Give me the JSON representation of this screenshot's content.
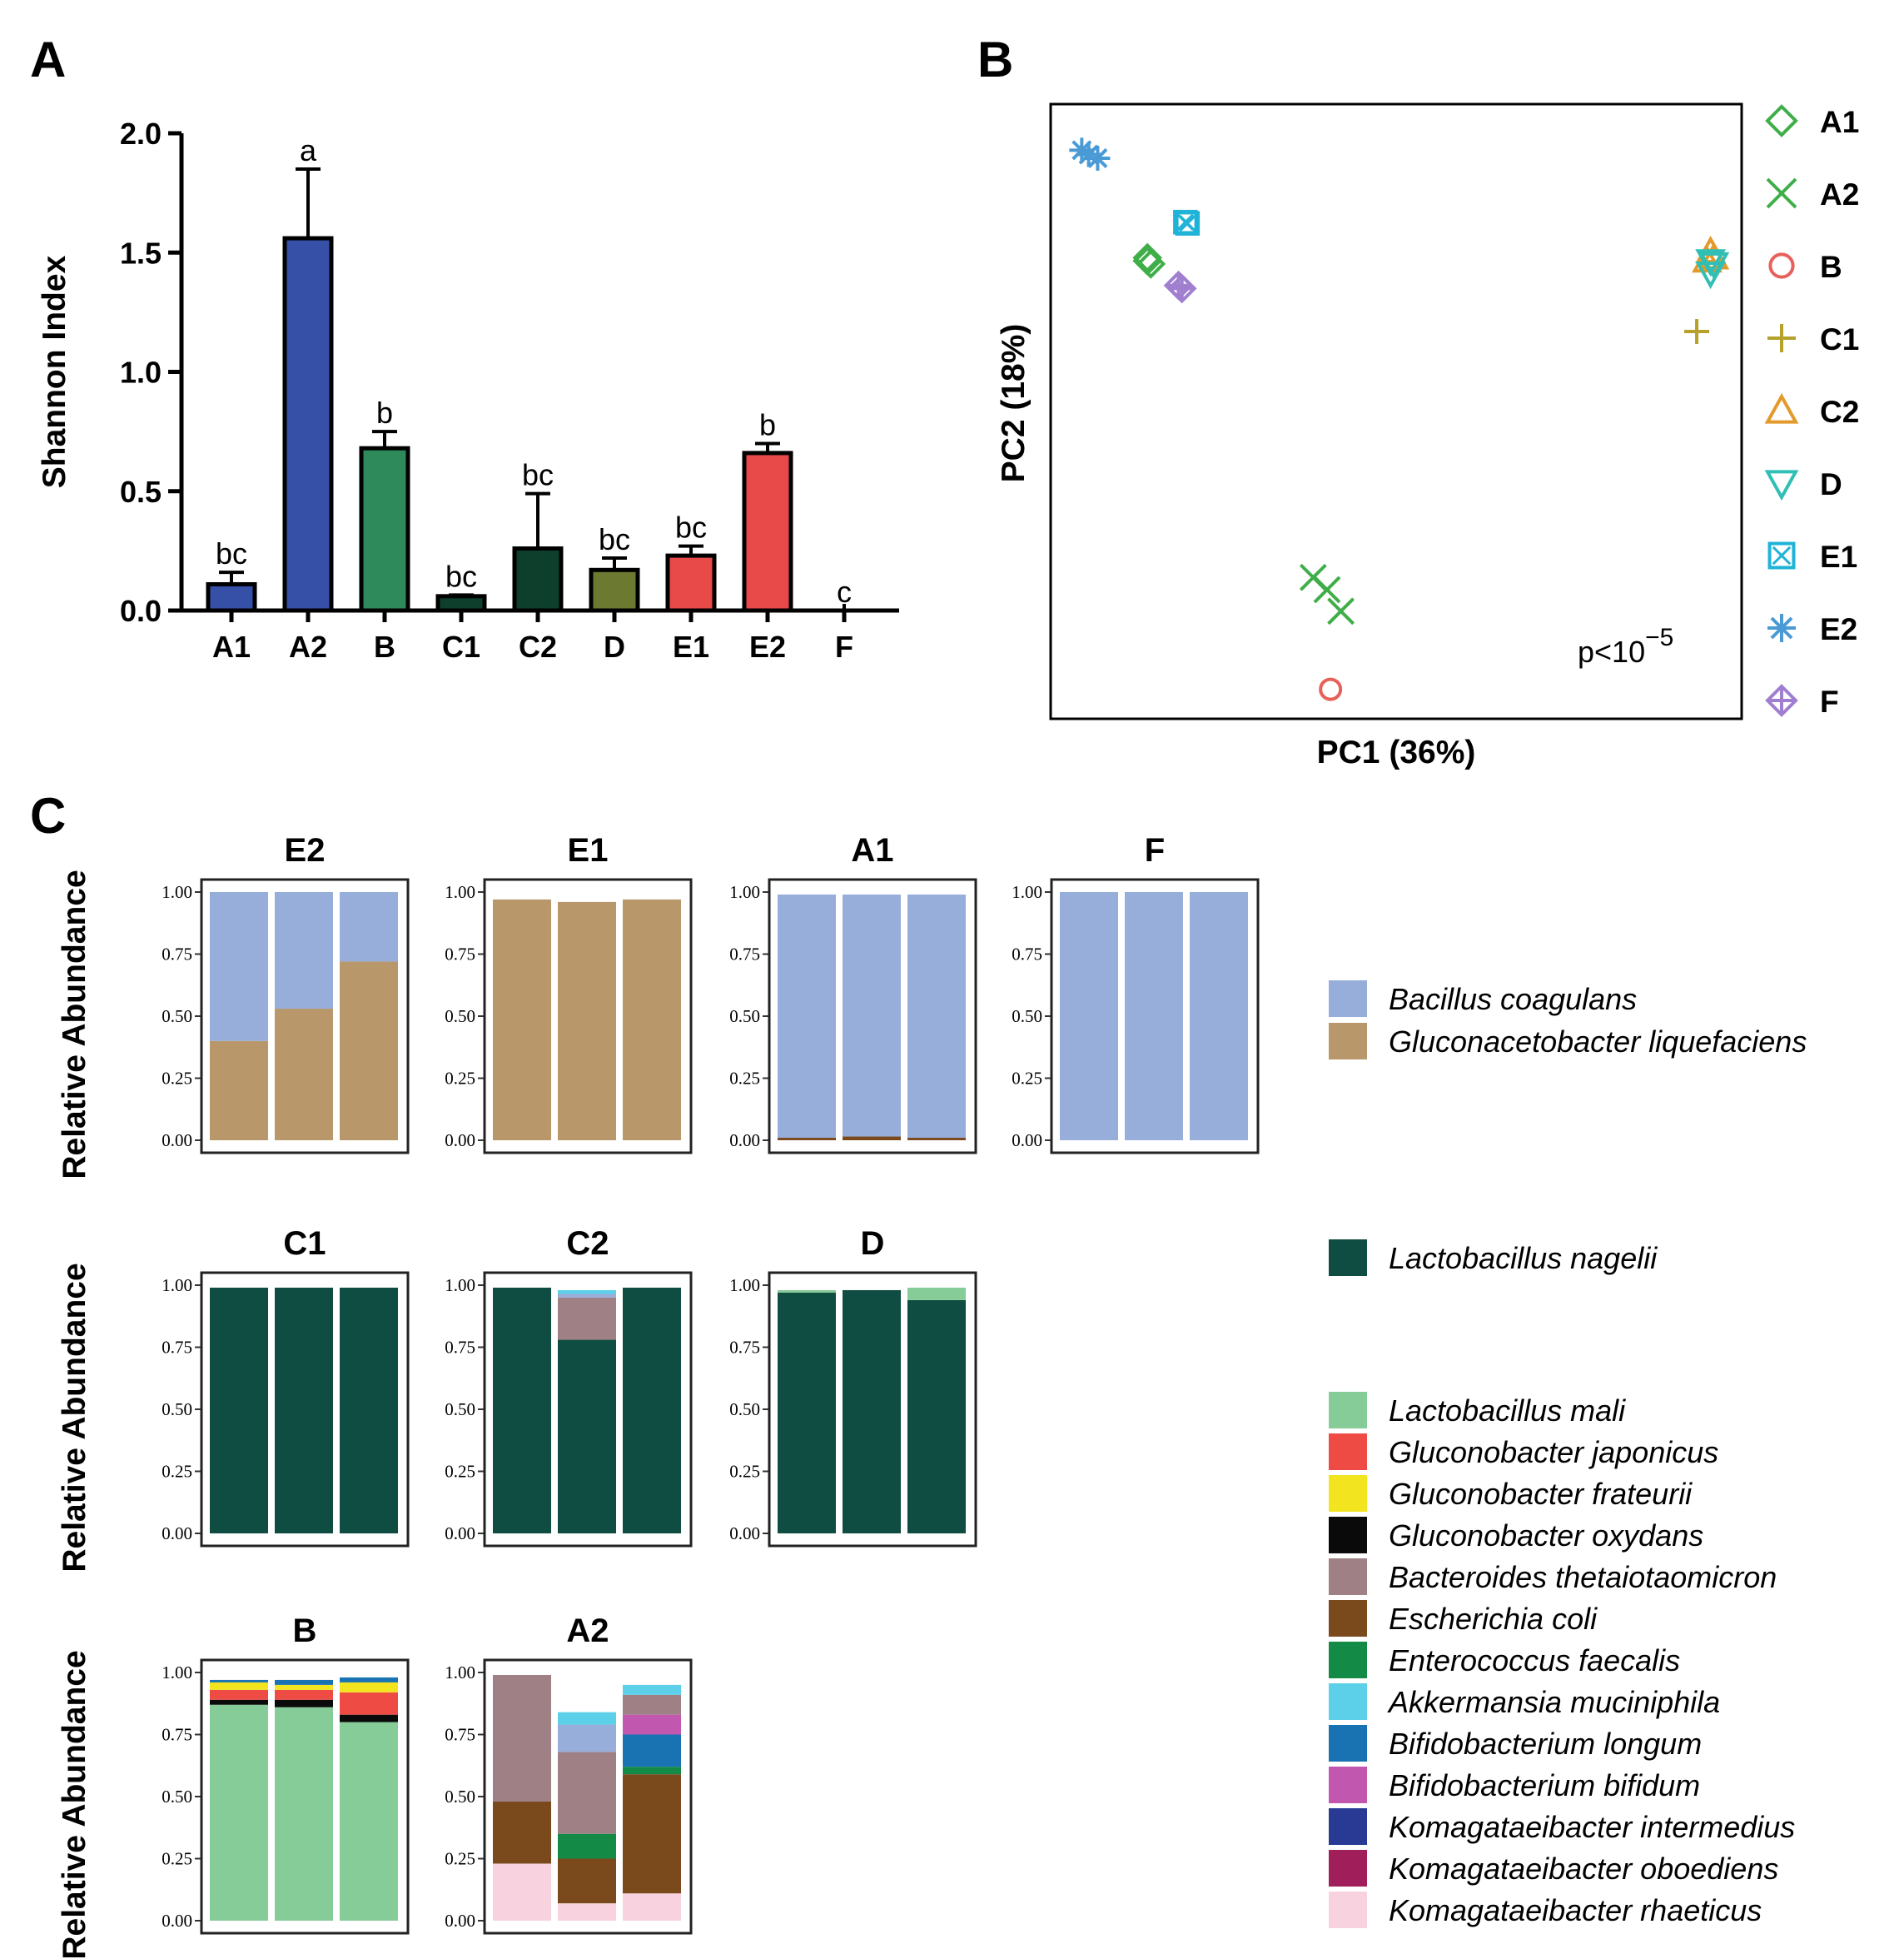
{
  "panels": {
    "a": "A",
    "b": "B",
    "c": "C"
  },
  "chart_data": [
    {
      "id": "A",
      "type": "bar",
      "ylabel": "Shannon Index",
      "xlabel": "",
      "ylim": [
        0,
        2.0
      ],
      "yticks": [
        "0.0",
        "0.5",
        "1.0",
        "1.5",
        "2.0"
      ],
      "categories": [
        "A1",
        "A2",
        "B",
        "C1",
        "C2",
        "D",
        "E1",
        "E2",
        "F"
      ],
      "values": [
        0.11,
        1.56,
        0.68,
        0.06,
        0.26,
        0.17,
        0.23,
        0.66,
        0.0
      ],
      "errors": [
        0.05,
        0.29,
        0.07,
        0.005,
        0.23,
        0.05,
        0.04,
        0.04,
        0.0
      ],
      "letters": [
        "bc",
        "a",
        "b",
        "bc",
        "bc",
        "bc",
        "bc",
        "b",
        "c"
      ],
      "colors": [
        "#3650a8",
        "#3650a8",
        "#2e8a5a",
        "#0e3f2c",
        "#0e3f2c",
        "#6b7a30",
        "#e84a4a",
        "#e84a4a",
        "#3650a8"
      ]
    },
    {
      "id": "B",
      "type": "scatter",
      "xlabel": "PC1 (36%)",
      "ylabel": "PC2 (18%)",
      "xlim": [
        0,
        1
      ],
      "ylim": [
        0,
        1
      ],
      "annotation": {
        "base": "p<10",
        "exponent": "−5"
      },
      "series": [
        {
          "name": "A1",
          "color": "#3fae49",
          "marker": "diamond",
          "points": [
            [
              0.14,
              0.75
            ],
            [
              0.145,
              0.74
            ],
            [
              0.14,
              0.745
            ]
          ]
        },
        {
          "name": "A2",
          "color": "#3fae49",
          "marker": "x",
          "points": [
            [
              0.38,
              0.23
            ],
            [
              0.4,
              0.21
            ],
            [
              0.42,
              0.175
            ]
          ]
        },
        {
          "name": "B",
          "color": "#e8605a",
          "marker": "circle",
          "points": [
            [
              0.405,
              0.048
            ]
          ]
        },
        {
          "name": "C1",
          "color": "#b5a12c",
          "marker": "plus",
          "points": [
            [
              0.935,
              0.63
            ]
          ]
        },
        {
          "name": "C2",
          "color": "#e39a2a",
          "marker": "triangle-up",
          "points": [
            [
              0.955,
              0.76
            ],
            [
              0.96,
              0.75
            ],
            [
              0.95,
              0.745
            ]
          ]
        },
        {
          "name": "D",
          "color": "#2fbfb5",
          "marker": "triangle-down",
          "points": [
            [
              0.955,
              0.745
            ],
            [
              0.96,
              0.74
            ],
            [
              0.955,
              0.725
            ]
          ]
        },
        {
          "name": "E1",
          "color": "#1fb3d8",
          "marker": "box-x",
          "points": [
            [
              0.195,
              0.808
            ],
            [
              0.198,
              0.806
            ]
          ]
        },
        {
          "name": "E2",
          "color": "#4a9ad6",
          "marker": "asterisk",
          "points": [
            [
              0.045,
              0.925
            ],
            [
              0.055,
              0.918
            ],
            [
              0.068,
              0.912
            ]
          ]
        },
        {
          "name": "F",
          "color": "#a07fd0",
          "marker": "diamond-plus",
          "points": [
            [
              0.185,
              0.705
            ],
            [
              0.19,
              0.7
            ]
          ]
        }
      ]
    },
    {
      "id": "C",
      "type": "bar",
      "stacked": true,
      "ylabel": "Relative Abundance",
      "yticks": [
        "0.00",
        "0.25",
        "0.50",
        "0.75",
        "1.00"
      ],
      "legend": [
        {
          "name": "Bacillus coagulans",
          "color": "#97aedb"
        },
        {
          "name": "Gluconacetobacter liquefaciens",
          "color": "#b8976a"
        },
        {
          "name": "Lactobacillus nagelii",
          "color": "#0f4c41"
        },
        {
          "name": "Lactobacillus mali",
          "color": "#86cc98"
        },
        {
          "name": "Gluconobacter japonicus",
          "color": "#ee4b45"
        },
        {
          "name": "Gluconobacter frateurii",
          "color": "#f2e41f"
        },
        {
          "name": "Gluconobacter oxydans",
          "color": "#0a0a0a"
        },
        {
          "name": "Bacteroides thetaiotaomicron",
          "color": "#9e8085"
        },
        {
          "name": "Escherichia coli",
          "color": "#7a4a1c"
        },
        {
          "name": "Enterococcus faecalis",
          "color": "#138a45"
        },
        {
          "name": "Akkermansia muciniphila",
          "color": "#5bd0e8"
        },
        {
          "name": "Bifidobacterium longum",
          "color": "#1973b3"
        },
        {
          "name": "Bifidobacterium bifidum",
          "color": "#c257b0"
        },
        {
          "name": "Komagataeibacter intermedius",
          "color": "#283a94"
        },
        {
          "name": "Komagataeibacter oboediens",
          "color": "#a01e5a"
        },
        {
          "name": "Komagataeibacter rhaeticus",
          "color": "#f8d3df"
        }
      ],
      "facets": [
        {
          "title": "E2",
          "samples": [
            {
              "Gluconacetobacter liquefaciens": 0.4,
              "Bacillus coagulans": 0.6
            },
            {
              "Gluconacetobacter liquefaciens": 0.53,
              "Bacillus coagulans": 0.47
            },
            {
              "Gluconacetobacter liquefaciens": 0.72,
              "Bacillus coagulans": 0.28
            }
          ]
        },
        {
          "title": "E1",
          "samples": [
            {
              "Gluconacetobacter liquefaciens": 0.97
            },
            {
              "Gluconacetobacter liquefaciens": 0.96
            },
            {
              "Gluconacetobacter liquefaciens": 0.97
            }
          ]
        },
        {
          "title": "A1",
          "samples": [
            {
              "Escherichia coli": 0.01,
              "Bacillus coagulans": 0.98
            },
            {
              "Escherichia coli": 0.015,
              "Bacillus coagulans": 0.975
            },
            {
              "Escherichia coli": 0.01,
              "Bacillus coagulans": 0.98
            }
          ]
        },
        {
          "title": "F",
          "samples": [
            {
              "Bacillus coagulans": 1.0
            },
            {
              "Bacillus coagulans": 1.0
            },
            {
              "Bacillus coagulans": 1.0
            }
          ]
        },
        {
          "title": "C1",
          "samples": [
            {
              "Lactobacillus nagelii": 0.99
            },
            {
              "Lactobacillus nagelii": 0.99
            },
            {
              "Lactobacillus nagelii": 0.99
            }
          ]
        },
        {
          "title": "C2",
          "samples": [
            {
              "Lactobacillus nagelii": 0.99
            },
            {
              "Lactobacillus nagelii": 0.78,
              "Bacteroides thetaiotaomicron": 0.17,
              "Bacillus coagulans": 0.015,
              "Akkermansia muciniphila": 0.015
            },
            {
              "Lactobacillus nagelii": 0.99
            }
          ]
        },
        {
          "title": "D",
          "samples": [
            {
              "Lactobacillus nagelii": 0.97,
              "Lactobacillus mali": 0.01
            },
            {
              "Lactobacillus nagelii": 0.98
            },
            {
              "Lactobacillus nagelii": 0.94,
              "Lactobacillus mali": 0.05
            }
          ]
        },
        {
          "title": "B",
          "samples": [
            {
              "Lactobacillus mali": 0.87,
              "Gluconobacter oxydans": 0.02,
              "Gluconobacter japonicus": 0.04,
              "Gluconobacter frateurii": 0.03,
              "Bifidobacterium longum": 0.01
            },
            {
              "Lactobacillus mali": 0.86,
              "Gluconobacter oxydans": 0.03,
              "Gluconobacter japonicus": 0.04,
              "Gluconobacter frateurii": 0.02,
              "Bifidobacterium longum": 0.02
            },
            {
              "Lactobacillus mali": 0.8,
              "Gluconobacter oxydans": 0.03,
              "Gluconobacter japonicus": 0.09,
              "Gluconobacter frateurii": 0.04,
              "Bifidobacterium longum": 0.02
            }
          ]
        },
        {
          "title": "A2",
          "samples": [
            {
              "Komagataeibacter rhaeticus": 0.23,
              "Escherichia coli": 0.25,
              "Bacteroides thetaiotaomicron": 0.51
            },
            {
              "Komagataeibacter rhaeticus": 0.07,
              "Escherichia coli": 0.18,
              "Enterococcus faecalis": 0.1,
              "Bacteroides thetaiotaomicron": 0.33,
              "Bacillus coagulans": 0.11,
              "Akkermansia muciniphila": 0.05
            },
            {
              "Komagataeibacter rhaeticus": 0.11,
              "Escherichia coli": 0.48,
              "Enterococcus faecalis": 0.03,
              "Bifidobacterium longum": 0.13,
              "Bifidobacterium bifidum": 0.08,
              "Bacteroides thetaiotaomicron": 0.08,
              "Akkermansia muciniphila": 0.04
            }
          ]
        }
      ]
    }
  ]
}
